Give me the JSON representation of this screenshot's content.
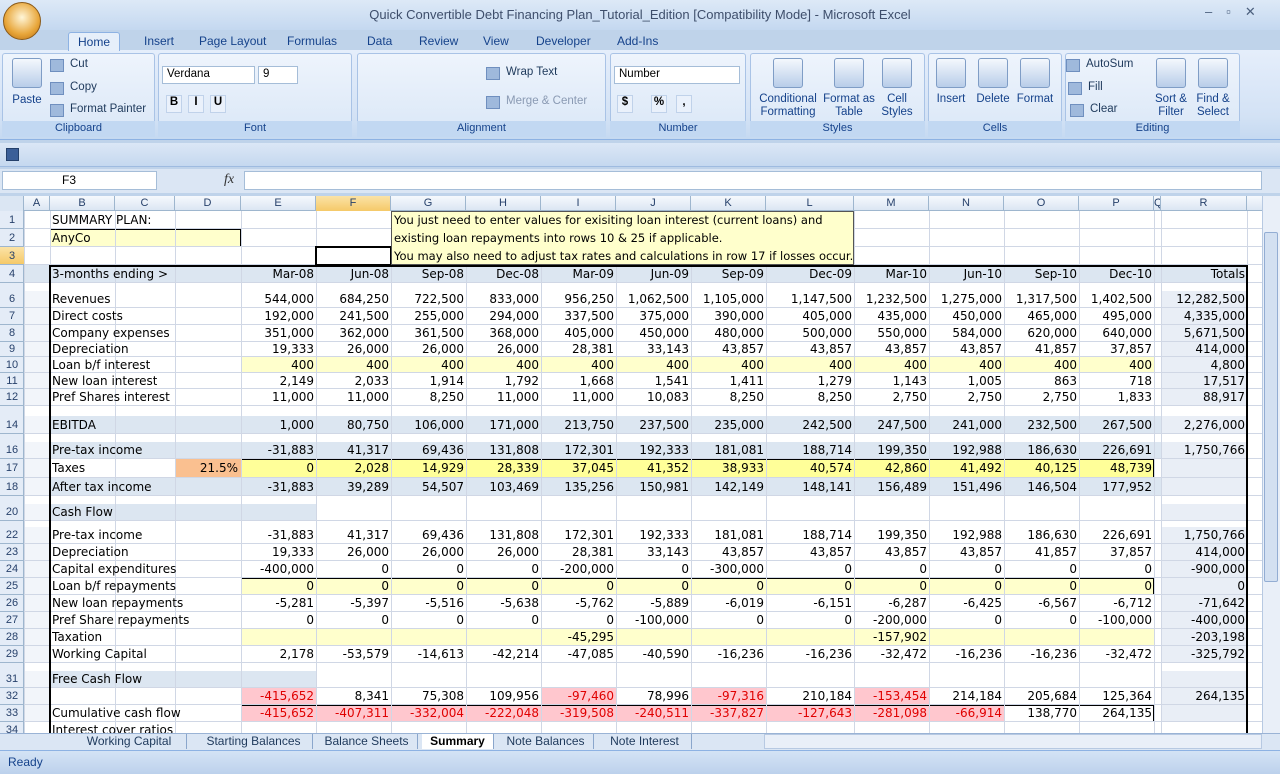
{
  "window": {
    "title": "Quick Convertible Debt Financing Plan_Tutorial_Edition  [Compatibility Mode] - Microsoft Excel"
  },
  "ribbon": {
    "tabs": [
      "Home",
      "Insert",
      "Page Layout",
      "Formulas",
      "Data",
      "Review",
      "View",
      "Developer",
      "Add-Ins"
    ],
    "groups": [
      {
        "name": "Clipboard",
        "buttons": [
          "Paste",
          "Cut",
          "Copy",
          "Format Painter"
        ]
      },
      {
        "name": "Font",
        "buttons": [
          "Verdana",
          "9",
          "B",
          "I",
          "U"
        ]
      },
      {
        "name": "Alignment",
        "buttons": [
          "Wrap Text",
          "Merge & Center"
        ]
      },
      {
        "name": "Number",
        "buttons": [
          "Number",
          "$",
          "%",
          ","
        ]
      },
      {
        "name": "Styles",
        "buttons": [
          "Conditional Formatting",
          "Format as Table",
          "Cell Styles"
        ]
      },
      {
        "name": "Cells",
        "buttons": [
          "Insert",
          "Delete",
          "Format"
        ]
      },
      {
        "name": "Editing",
        "buttons": [
          "AutoSum",
          "Fill",
          "Clear",
          "Sort & Filter",
          "Find & Select"
        ]
      }
    ]
  },
  "formula_bar": {
    "name_box": "F3",
    "function_button": "fx"
  },
  "sheet": {
    "columns": [
      "A",
      "B",
      "C",
      "D",
      "E",
      "F",
      "G",
      "H",
      "I",
      "J",
      "K",
      "L",
      "M",
      "N",
      "O",
      "P",
      "Q",
      "R"
    ],
    "comment": [
      "You just need to enter values for exisiting loan interest (current loans) and",
      "existing loan repayments into rows 10 & 25 if applicable.",
      "You may also need to adjust tax rates and calculations in row 17 if losses occur."
    ],
    "rows": [
      {
        "row": "1",
        "label": "SUMMARY PLAN:"
      },
      {
        "row": "2",
        "label": "AnyCo"
      },
      {
        "row": "3"
      },
      {
        "row": "4",
        "label": "3-months ending >",
        "values": [
          "Mar-08",
          "Jun-08",
          "Sep-08",
          "Dec-08",
          "Mar-09",
          "Jun-09",
          "Sep-09",
          "Dec-09",
          "Mar-10",
          "Jun-10",
          "Sep-10",
          "Dec-10"
        ],
        "total": "Totals"
      },
      {
        "row": "6",
        "label": "Revenues",
        "values": [
          "544,000",
          "684,250",
          "722,500",
          "833,000",
          "956,250",
          "1,062,500",
          "1,105,000",
          "1,147,500",
          "1,232,500",
          "1,275,000",
          "1,317,500",
          "1,402,500"
        ],
        "total": "12,282,500"
      },
      {
        "row": "7",
        "label": "Direct costs",
        "values": [
          "192,000",
          "241,500",
          "255,000",
          "294,000",
          "337,500",
          "375,000",
          "390,000",
          "405,000",
          "435,000",
          "450,000",
          "465,000",
          "495,000"
        ],
        "total": "4,335,000"
      },
      {
        "row": "8",
        "label": "Company expenses",
        "values": [
          "351,000",
          "362,000",
          "361,500",
          "368,000",
          "405,000",
          "450,000",
          "480,000",
          "500,000",
          "550,000",
          "584,000",
          "620,000",
          "640,000"
        ],
        "total": "5,671,500"
      },
      {
        "row": "9",
        "label": "Depreciation",
        "values": [
          "19,333",
          "26,000",
          "26,000",
          "26,000",
          "28,381",
          "33,143",
          "43,857",
          "43,857",
          "43,857",
          "43,857",
          "41,857",
          "37,857"
        ],
        "total": "414,000"
      },
      {
        "row": "10",
        "label": "Loan b/f interest",
        "values": [
          "400",
          "400",
          "400",
          "400",
          "400",
          "400",
          "400",
          "400",
          "400",
          "400",
          "400",
          "400"
        ],
        "total": "4,800"
      },
      {
        "row": "11",
        "label": "New loan interest",
        "values": [
          "2,149",
          "2,033",
          "1,914",
          "1,792",
          "1,668",
          "1,541",
          "1,411",
          "1,279",
          "1,143",
          "1,005",
          "863",
          "718"
        ],
        "total": "17,517"
      },
      {
        "row": "12",
        "label": "Pref Shares interest",
        "values": [
          "11,000",
          "11,000",
          "8,250",
          "11,000",
          "11,000",
          "10,083",
          "8,250",
          "8,250",
          "2,750",
          "2,750",
          "2,750",
          "1,833"
        ],
        "total": "88,917"
      },
      {
        "row": "14",
        "label": "EBITDA",
        "values": [
          "1,000",
          "80,750",
          "106,000",
          "171,000",
          "213,750",
          "237,500",
          "235,000",
          "242,500",
          "247,500",
          "241,000",
          "232,500",
          "267,500"
        ],
        "total": "2,276,000"
      },
      {
        "row": "16",
        "label": "Pre-tax income",
        "values": [
          "-31,883",
          "41,317",
          "69,436",
          "131,808",
          "172,301",
          "192,333",
          "181,081",
          "188,714",
          "199,350",
          "192,988",
          "186,630",
          "226,691"
        ],
        "total": "1,750,766"
      },
      {
        "row": "17",
        "label": "Taxes",
        "rate": "21.5%",
        "values": [
          "0",
          "2,028",
          "14,929",
          "28,339",
          "37,045",
          "41,352",
          "38,933",
          "40,574",
          "42,860",
          "41,492",
          "40,125",
          "48,739"
        ]
      },
      {
        "row": "18",
        "label": "After tax income",
        "values": [
          "-31,883",
          "39,289",
          "54,507",
          "103,469",
          "135,256",
          "150,981",
          "142,149",
          "148,141",
          "156,489",
          "151,496",
          "146,504",
          "177,952"
        ]
      },
      {
        "row": "20",
        "label": "Cash Flow"
      },
      {
        "row": "22",
        "label": "Pre-tax income",
        "values": [
          "-31,883",
          "41,317",
          "69,436",
          "131,808",
          "172,301",
          "192,333",
          "181,081",
          "188,714",
          "199,350",
          "192,988",
          "186,630",
          "226,691"
        ],
        "total": "1,750,766"
      },
      {
        "row": "23",
        "label": "Depreciation",
        "values": [
          "19,333",
          "26,000",
          "26,000",
          "26,000",
          "28,381",
          "33,143",
          "43,857",
          "43,857",
          "43,857",
          "43,857",
          "41,857",
          "37,857"
        ],
        "total": "414,000"
      },
      {
        "row": "24",
        "label": "Capital expenditures",
        "values": [
          "-400,000",
          "0",
          "0",
          "0",
          "-200,000",
          "0",
          "-300,000",
          "0",
          "0",
          "0",
          "0",
          "0"
        ],
        "total": "-900,000"
      },
      {
        "row": "25",
        "label": "Loan b/f repayments",
        "values": [
          "0",
          "0",
          "0",
          "0",
          "0",
          "0",
          "0",
          "0",
          "0",
          "0",
          "0",
          "0"
        ],
        "total": "0"
      },
      {
        "row": "26",
        "label": "New loan repayments",
        "values": [
          "-5,281",
          "-5,397",
          "-5,516",
          "-5,638",
          "-5,762",
          "-5,889",
          "-6,019",
          "-6,151",
          "-6,287",
          "-6,425",
          "-6,567",
          "-6,712"
        ],
        "total": "-71,642"
      },
      {
        "row": "27",
        "label": "Pref Share repayments",
        "values": [
          "0",
          "0",
          "0",
          "0",
          "0",
          "-100,000",
          "0",
          "0",
          "-200,000",
          "0",
          "0",
          "-100,000"
        ],
        "total": "-400,000"
      },
      {
        "row": "28",
        "label": "Taxation",
        "values": [
          null,
          null,
          null,
          null,
          "-45,295",
          null,
          null,
          null,
          "-157,902",
          null,
          null,
          null
        ],
        "total": "-203,198"
      },
      {
        "row": "29",
        "label": "Working Capital",
        "values": [
          "2,178",
          "-53,579",
          "-14,613",
          "-42,214",
          "-47,085",
          "-40,590",
          "-16,236",
          "-16,236",
          "-32,472",
          "-16,236",
          "-16,236",
          "-32,472"
        ],
        "total": "-325,792"
      },
      {
        "row": "31",
        "label": "Free Cash Flow"
      },
      {
        "row": "32",
        "values": [
          "-415,652",
          "8,341",
          "75,308",
          "109,956",
          "-97,460",
          "78,996",
          "-97,316",
          "210,184",
          "-153,454",
          "214,184",
          "205,684",
          "125,364"
        ],
        "total": "264,135"
      },
      {
        "row": "33",
        "label": "Cumulative cash flow",
        "values": [
          "-415,652",
          "-407,311",
          "-332,004",
          "-222,048",
          "-319,508",
          "-240,511",
          "-337,827",
          "-127,643",
          "-281,098",
          "-66,914",
          "138,770",
          "264,135"
        ]
      },
      {
        "row": "34",
        "label": "Interest cover ratios"
      }
    ]
  },
  "sheet_tabs": [
    "Working Capital",
    "Starting Balances",
    "Balance Sheets",
    "Summary",
    "Note Balances",
    "Note Interest"
  ],
  "status": "Ready"
}
